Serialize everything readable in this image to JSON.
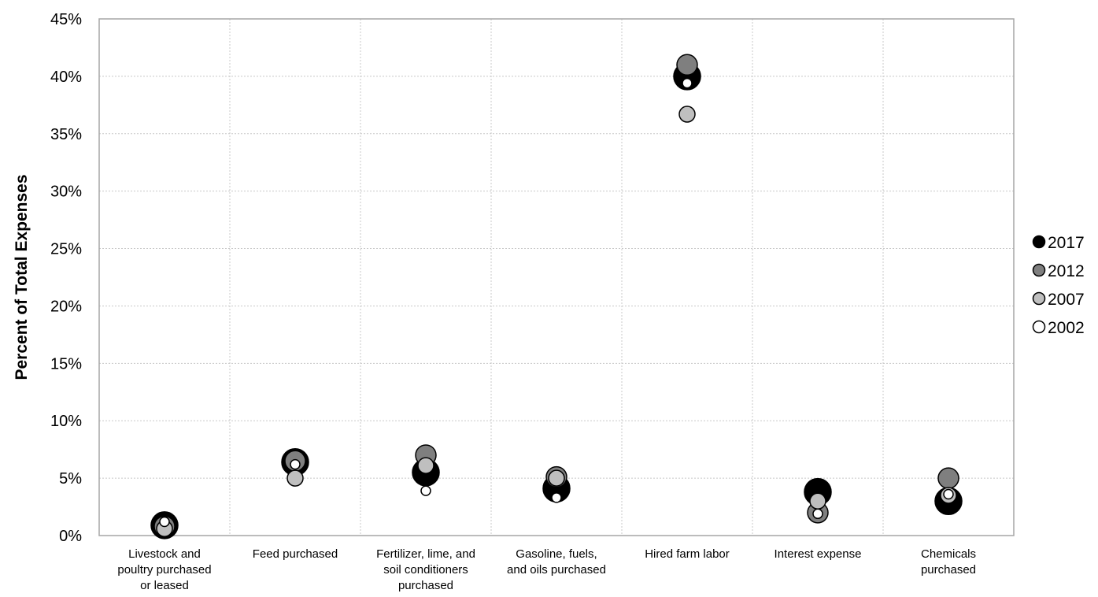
{
  "chart_data": {
    "type": "scatter",
    "title": "",
    "xlabel": "",
    "ylabel": "Percent of Total Expenses",
    "ylim": [
      0,
      45
    ],
    "ytick_step": 5,
    "ytick_format": "percent",
    "grid": true,
    "legend_position": "right",
    "categories": [
      [
        "Livestock and",
        "poultry purchased",
        "or leased"
      ],
      [
        "Feed purchased"
      ],
      [
        "Fertilizer, lime, and",
        "soil conditioners",
        "purchased"
      ],
      [
        "Gasoline, fuels,",
        "and oils purchased"
      ],
      [
        "Hired farm labor"
      ],
      [
        "Interest expense"
      ],
      [
        "Chemicals",
        "purchased"
      ]
    ],
    "series": [
      {
        "name": "2017",
        "color": "#000000",
        "marker": "large",
        "values": [
          0.9,
          6.4,
          5.5,
          4.1,
          40.0,
          3.8,
          3.0
        ]
      },
      {
        "name": "2012",
        "color": "#7f7f7f",
        "marker": "medium",
        "values": [
          0.8,
          6.5,
          7.0,
          5.1,
          41.0,
          2.0,
          5.0
        ]
      },
      {
        "name": "2007",
        "color": "#bfbfbf",
        "marker": "small",
        "values": [
          0.6,
          5.0,
          6.1,
          5.0,
          36.7,
          3.0,
          3.5
        ]
      },
      {
        "name": "2002",
        "color": "#ffffff",
        "marker": "tiny",
        "values": [
          1.2,
          6.2,
          3.9,
          3.3,
          39.4,
          1.9,
          3.6
        ]
      }
    ]
  }
}
